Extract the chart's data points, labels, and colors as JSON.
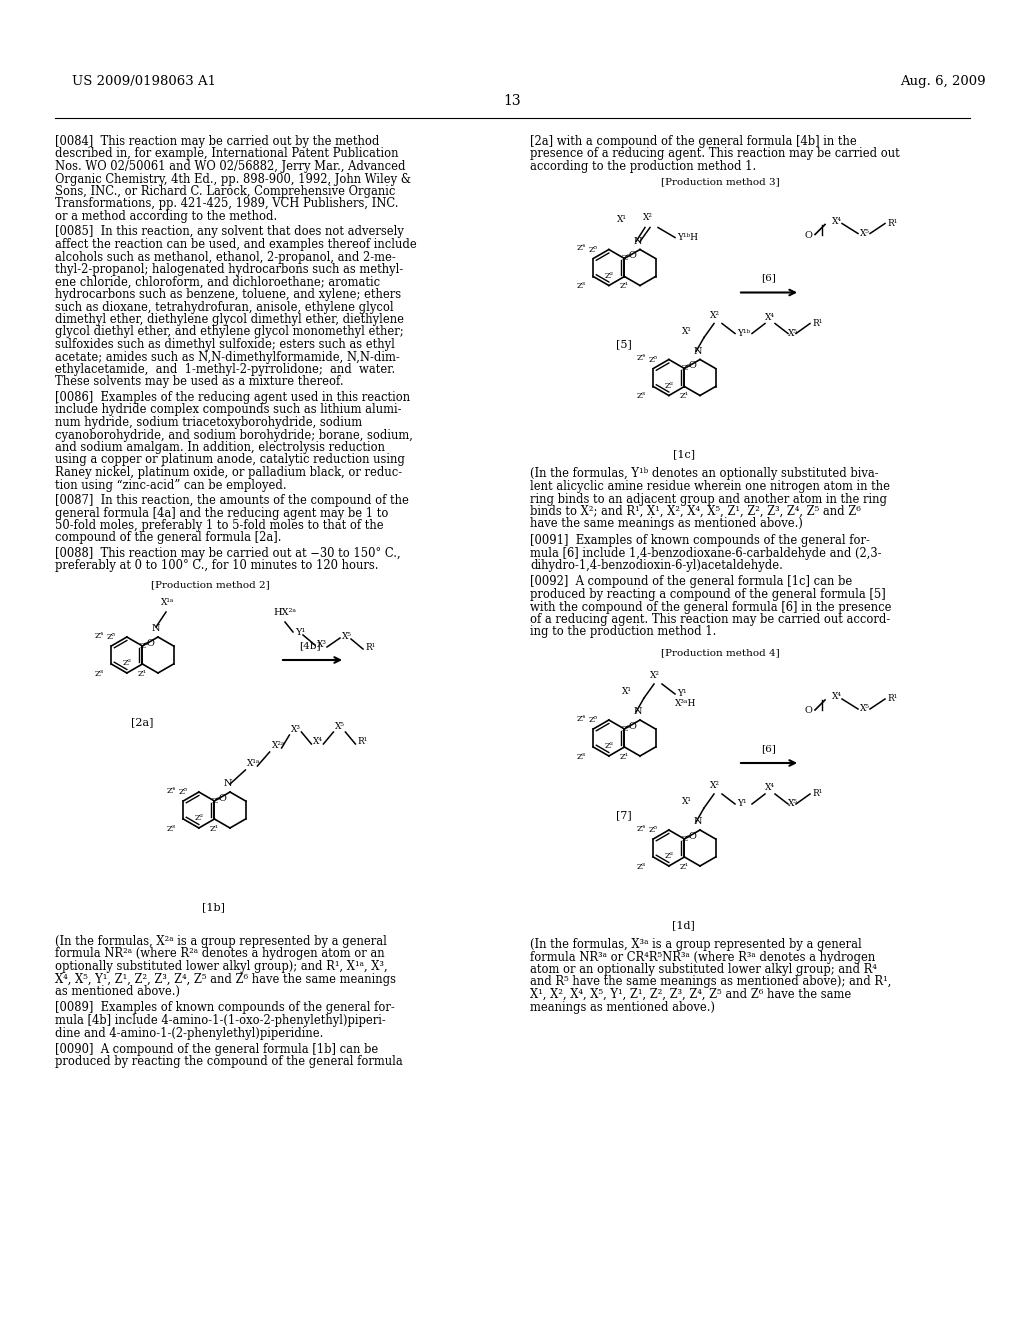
{
  "background_color": "#ffffff",
  "page_number": "13",
  "header_left": "US 2009/0198063 A1",
  "header_right": "Aug. 6, 2009",
  "left_column_text": [
    {
      "tag": "[0084]",
      "text": "This reaction may be carried out by the method described in, for example, International Patent Publication Nos. WO 02/50061 and WO 02/56882, Jerry Mar., Advanced Organic Chemistry, 4th Ed., pp. 898-900, 1992, John Wiley & Sons, INC., or Richard C. Larock, Comprehensive Organic Transformations, pp. 421-425, 1989, VCH Publishers, INC. or a method according to the method."
    },
    {
      "tag": "[0085]",
      "text": "In this reaction, any solvent that does not adversely affect the reaction can be used, and examples thereof include alcohols such as methanol, ethanol, 2-propanol, and 2-me-thyl-2-propanol; halogenated hydrocarbons such as methyl-ene chloride, chloroform, and dichloroethane; aromatic hydrocarbons such as benzene, toluene, and xylene; ethers such as dioxane, tetrahydrofuran, anisole, ethylene glycol dimethyl ether, diethylene glycol dimethyl ether, diethylene glycol diethyl ether, and ethylene glycol monomethyl ether; sulfoxides such as dimethyl sulfoxide; esters such as ethyl acetate; amides such as N,N-dimethylformamide, N,N-dim-ethylacetamide, and 1-methyl-2-pyrrolidone; and water. These solvents may be used as a mixture thereof."
    },
    {
      "tag": "[0086]",
      "text": "Examples of the reducing agent used in this reaction include hydride complex compounds such as lithium alumi-num hydride, sodium triacetoxyborohydride, sodium cyanoborohydride, and sodium borohydride; borane, sodium, and sodium amalgam. In addition, electrolysis reduction using a copper or platinum anode, catalytic reduction using Raney nickel, platinum oxide, or palladium black, or reduc-tion using “zinc-acid” can be employed."
    },
    {
      "tag": "[0087]",
      "text": "In this reaction, the amounts of the compound of the general formula [4a] and the reducing agent may be 1 to 50-fold moles, preferably 1 to 5-fold moles to that of the compound of the general formula [2a]."
    },
    {
      "tag": "[0088]",
      "text": "This reaction may be carried out at −30 to 150° C., preferably at 0 to 100° C., for 10 minutes to 120 hours."
    }
  ],
  "right_column_text": [
    {
      "tag": "",
      "text": "[2a] with a compound of the general formula [4b] in the presence of a reducing agent. This reaction may be carried out according to the production method 1."
    },
    {
      "tag": "[0091]",
      "text": "Examples of known compounds of the general for-mula [6] include 1,4-benzodioxane-6-carbaldehyde and (2,3-dihydro-1,4-benzodioxin-6-yl)acetaldehyde."
    },
    {
      "tag": "[0092]",
      "text": "A compound of the general formula [1c] can be produced by reacting a compound of the general formula [5] with the compound of the general formula [6] in the presence of a reducing agent. This reaction may be carried out accord-ing to the production method 1."
    }
  ],
  "right_column_text2": [
    {
      "tag": "[0089]",
      "text": "Examples of known compounds of the general for-mula [4b] include 4-amino-1-(1-oxo-2-phenylethyl)piperi-dine and 4-amino-1-(2-phenylethyl)piperidine."
    },
    {
      "tag": "[0090]",
      "text": "A compound of the general formula [1b] can be produced by reacting the compound of the general formula"
    }
  ],
  "right_column_text3": [
    {
      "text": "(In the formulas, Y¹ᵇ denotes an optionally substituted biva-lent alicyclic amine residue wherein one nitrogen atom in the ring binds to an adjacent group and another atom in the ring binds to X²; and R¹, X¹, X², X⁴, X⁵, Z¹, Z², Z³, Z⁴, Z⁵ and Z⁶ have the same meanings as mentioned above.)"
    }
  ],
  "right_column_text4": [
    {
      "text": "(In the formulas, X³ᵃ is a group represented by a general formula NR³ᵃ or CR⁴R⁵NR³ᵃ (where R³ᵃ denotes a hydrogen atom or an optionally substituted lower alkyl group; and R⁴ and R⁵ have the same meanings as mentioned above); and R¹, X¹, X², X⁴, X⁵, Y¹, Z¹, Z², Z³, Z⁴, Z⁵ and Z⁶ have the same meanings as mentioned above.)"
    }
  ]
}
